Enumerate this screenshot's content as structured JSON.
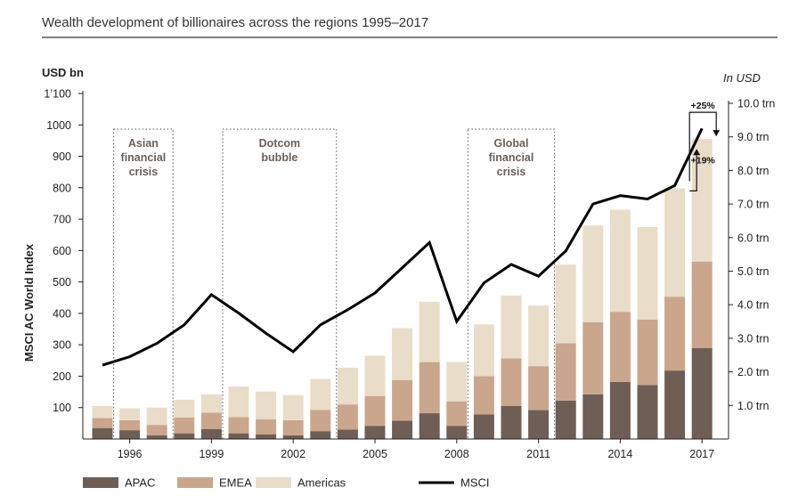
{
  "chart_data": {
    "type": "bar",
    "title": "Wealth development of billionaires across the regions 1995–2017",
    "left_axis": {
      "unit_label": "USD bn",
      "title": "MSCI AC World Index",
      "ylim": [
        0,
        1100
      ],
      "ticks": [
        100,
        200,
        300,
        400,
        500,
        600,
        700,
        800,
        900,
        1000,
        1100
      ],
      "tick_labels": [
        "100",
        "200",
        "300",
        "400",
        "500",
        "600",
        "700",
        "800",
        "900",
        "1000",
        "1’100"
      ]
    },
    "right_axis": {
      "unit_label": "In USD",
      "ylim": [
        0,
        10
      ],
      "ticks": [
        1,
        2,
        3,
        4,
        5,
        6,
        7,
        8,
        9,
        10
      ],
      "tick_labels": [
        "1.0 trn",
        "2.0 trn",
        "3.0 trn",
        "4.0 trn",
        "5.0 trn",
        "6.0 trn",
        "7.0 trn",
        "8.0 trn",
        "9.0 trn",
        "10.0 trn"
      ]
    },
    "x": [
      1995,
      1996,
      1997,
      1998,
      1999,
      2000,
      2001,
      2002,
      2003,
      2004,
      2005,
      2006,
      2007,
      2008,
      2009,
      2010,
      2011,
      2012,
      2013,
      2014,
      2015,
      2016,
      2017
    ],
    "x_tick_labels": [
      "1996",
      "1999",
      "2002",
      "2005",
      "2008",
      "2011",
      "2014",
      "2017"
    ],
    "x_tick_years": [
      1996,
      1999,
      2002,
      2005,
      2008,
      2011,
      2014,
      2017
    ],
    "series": [
      {
        "name": "APAC",
        "color": "#6e5e55",
        "values": [
          35,
          28,
          12,
          18,
          32,
          18,
          15,
          12,
          25,
          30,
          42,
          58,
          82,
          42,
          78,
          105,
          92,
          122,
          142,
          182,
          172,
          218,
          290
        ]
      },
      {
        "name": "EMEA",
        "color": "#caa68d",
        "values": [
          32,
          32,
          33,
          50,
          52,
          52,
          48,
          48,
          68,
          80,
          95,
          130,
          163,
          78,
          122,
          152,
          140,
          183,
          230,
          223,
          208,
          235,
          275
        ]
      },
      {
        "name": "Americas",
        "color": "#e9dcc8",
        "values": [
          38,
          38,
          55,
          57,
          58,
          97,
          88,
          80,
          98,
          117,
          128,
          165,
          192,
          125,
          165,
          200,
          193,
          250,
          308,
          325,
          295,
          345,
          390
        ]
      }
    ],
    "line_series": {
      "name": "MSCI",
      "color": "#000000",
      "axis": "right",
      "values": [
        2.2,
        2.45,
        2.85,
        3.4,
        4.3,
        3.75,
        3.15,
        2.6,
        3.4,
        3.85,
        4.35,
        5.1,
        5.85,
        3.5,
        4.65,
        5.2,
        4.85,
        5.6,
        7.0,
        7.25,
        7.15,
        7.55,
        9.25
      ]
    },
    "crisis_periods": [
      {
        "label": [
          "Asian",
          "financial",
          "crisis"
        ],
        "start_year": 1996,
        "end_year": 1997
      },
      {
        "label": [
          "Dotcom",
          "bubble"
        ],
        "start_year": 2000,
        "end_year": 2003
      },
      {
        "label": [
          "Global",
          "financial",
          "crisis"
        ],
        "start_year": 2009,
        "end_year": 2011
      }
    ],
    "annotations": [
      {
        "text": "+25%",
        "type": "bar-change",
        "year": 2017
      },
      {
        "text": "+19%",
        "type": "bar-change",
        "year": 2017
      }
    ],
    "legend": [
      {
        "name": "APAC",
        "kind": "swatch",
        "color": "#6e5e55"
      },
      {
        "name": "EMEA",
        "kind": "swatch",
        "color": "#caa68d"
      },
      {
        "name": "Americas",
        "kind": "swatch",
        "color": "#e9dcc8"
      },
      {
        "name": "MSCI",
        "kind": "line",
        "color": "#000000"
      }
    ],
    "legend_position": "bottom",
    "grid": false
  }
}
